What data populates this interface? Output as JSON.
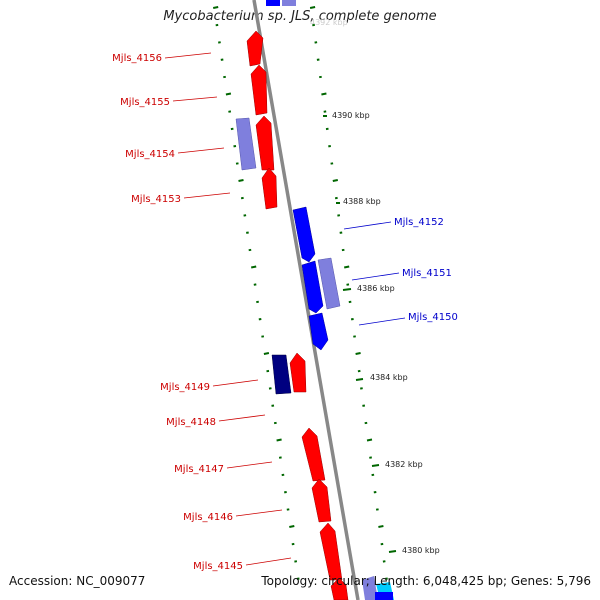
{
  "title": "Mycobacterium sp. JLS, complete genome",
  "footer": {
    "accession": "Accession: NC_009077",
    "summary": "Topology: circular; Length: 6,048,425 bp; Genes: 5,796"
  },
  "colors": {
    "backbone": "#8c8c8c",
    "forward_gene": "#ff0000",
    "reverse_gene": "#0000ff",
    "forward_label": "#cc0000",
    "reverse_label": "#0000cc",
    "forward_cds_light": "#7f7fdd",
    "dark_cds": "#000080",
    "tick": "#006600",
    "cyan_feature": "#00ccff"
  },
  "scale_labels": [
    "4390 kbp",
    "4388 kbp",
    "4386 kbp",
    "4384 kbp",
    "4382 kbp",
    "4380 kbp"
  ],
  "gene_labels": {
    "forward": [
      "Mjls_4156",
      "Mjls_4155",
      "Mjls_4154",
      "Mjls_4153",
      "Mjls_4149",
      "Mjls_4148",
      "Mjls_4147",
      "Mjls_4146",
      "Mjls_4145"
    ],
    "reverse": [
      "Mjls_4152",
      "Mjls_4151",
      "Mjls_4150"
    ]
  }
}
